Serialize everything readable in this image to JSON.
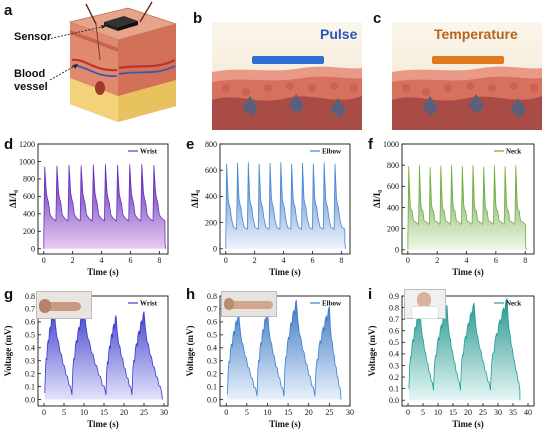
{
  "panels": {
    "a": {
      "letter": "a",
      "sensor_label": "Sensor",
      "blood_label": "Blood",
      "vessel_label": "vessel"
    },
    "b": {
      "letter": "b",
      "title": "Pulse"
    },
    "c": {
      "letter": "c",
      "title": "Temperature"
    }
  },
  "colors": {
    "pulse_title": "#2a57b8",
    "temp_title": "#b5651d",
    "sensor_pad": "#2e6fd6",
    "temp_pad": "#e07a1f"
  },
  "chart_data": [
    {
      "id": "d",
      "letter": "d",
      "type": "line",
      "legend": "Wrist",
      "xlabel": "Time (s)",
      "ylabel": "ΔI/I₀",
      "xlim": [
        -0.4,
        8.6
      ],
      "ylim": [
        -60,
        1200
      ],
      "xticks": [
        0,
        2,
        4,
        6,
        8
      ],
      "yticks": [
        0,
        200,
        400,
        600,
        800,
        1000,
        1200
      ],
      "color": "#6a2fc4",
      "fill_top": "#4b1fa6",
      "fill_bottom": "#e6c8f5",
      "x_start": 0,
      "period": 0.84,
      "cycles": 10,
      "baseline": 0,
      "peaks": [
        940,
        950,
        960,
        955,
        965,
        970,
        960,
        965,
        970,
        960
      ],
      "notch": 640,
      "notch2": 500,
      "trough": 320
    },
    {
      "id": "e",
      "letter": "e",
      "type": "line",
      "legend": "Elbow",
      "xlabel": "Time (s)",
      "ylabel": "ΔI/I₀",
      "xlim": [
        -0.4,
        8.6
      ],
      "ylim": [
        -40,
        800
      ],
      "xticks": [
        0,
        2,
        4,
        6,
        8
      ],
      "yticks": [
        0,
        200,
        400,
        600,
        800
      ],
      "color": "#4a86d8",
      "fill_top": "#3d74c7",
      "fill_bottom": "#eef4fc",
      "x_start": 0,
      "period": 0.75,
      "cycles": 11,
      "baseline": 0,
      "peaks": [
        650,
        655,
        660,
        650,
        655,
        660,
        650,
        655,
        650,
        660,
        650
      ],
      "notch": 380,
      "notch2": 300,
      "trough": 150
    },
    {
      "id": "f",
      "letter": "f",
      "type": "line",
      "legend": "Neck",
      "xlabel": "Time (s)",
      "ylabel": "ΔI/I₀",
      "xlim": [
        -0.4,
        8.6
      ],
      "ylim": [
        -40,
        1000
      ],
      "xticks": [
        0,
        2,
        4,
        6,
        8
      ],
      "yticks": [
        0,
        200,
        400,
        600,
        800,
        1000
      ],
      "color": "#6fae3f",
      "fill_top": "#5a9a33",
      "fill_bottom": "#eef7e6",
      "x_start": 0,
      "period": 0.73,
      "cycles": 11,
      "baseline": 0,
      "peaks": [
        790,
        800,
        780,
        795,
        800,
        790,
        800,
        785,
        800,
        790,
        800
      ],
      "notch": 420,
      "notch2": 350,
      "trough": 240
    },
    {
      "id": "g",
      "letter": "g",
      "type": "line",
      "legend": "Wrist",
      "xlabel": "Time (s)",
      "ylabel": "Voltage (mV)",
      "xlim": [
        -1.5,
        31
      ],
      "ylim": [
        -0.05,
        0.8
      ],
      "xticks": [
        0,
        5,
        10,
        15,
        20,
        25,
        30
      ],
      "yticks": [
        0.0,
        0.1,
        0.2,
        0.3,
        0.4,
        0.5,
        0.6,
        0.7,
        0.8
      ],
      "color": "#3a3ad0",
      "fill_top": "#3434c8",
      "fill_bottom": "#e2e2fa",
      "waves": [
        [
          0.2,
          2.5,
          7.0,
          0.7
        ],
        [
          7.0,
          10.0,
          15.5,
          0.7
        ],
        [
          15.5,
          18.0,
          22.0,
          0.63
        ],
        [
          22.0,
          25.0,
          29.5,
          0.66
        ]
      ],
      "base": 0.05,
      "end_x": 29.6
    },
    {
      "id": "h",
      "letter": "h",
      "type": "line",
      "legend": "Elbow",
      "xlabel": "Time (s)",
      "ylabel": "Voltage (mV)",
      "xlim": [
        -1.5,
        30
      ],
      "ylim": [
        -0.05,
        0.8
      ],
      "xticks": [
        0,
        5,
        10,
        15,
        20,
        25,
        30
      ],
      "yticks": [
        0.0,
        0.1,
        0.2,
        0.3,
        0.4,
        0.5,
        0.6,
        0.7,
        0.8
      ],
      "color": "#3b7fcc",
      "fill_top": "#2f6fbf",
      "fill_bottom": "#e8f1fb",
      "waves": [
        [
          0.3,
          3.0,
          7.5,
          0.66
        ],
        [
          7.5,
          10.0,
          14.0,
          0.68
        ],
        [
          14.0,
          17.0,
          21.5,
          0.75
        ],
        [
          21.5,
          25.0,
          27.8,
          0.7
        ]
      ],
      "base": 0.04,
      "end_x": 27.8
    },
    {
      "id": "i",
      "letter": "i",
      "type": "line",
      "legend": "Neck",
      "xlabel": "Time (s)",
      "ylabel": "Voltage (mV)",
      "xlim": [
        -2,
        42
      ],
      "ylim": [
        -0.05,
        0.9
      ],
      "xticks": [
        0,
        5,
        10,
        15,
        20,
        25,
        30,
        35,
        40
      ],
      "yticks": [
        0.0,
        0.1,
        0.2,
        0.3,
        0.4,
        0.5,
        0.6,
        0.7,
        0.8,
        0.9
      ],
      "color": "#1f9e97",
      "fill_top": "#1a8f88",
      "fill_bottom": "#e3f6f4",
      "waves": [
        [
          0.3,
          4.0,
          8.5,
          0.78
        ],
        [
          8.5,
          13.0,
          17.5,
          0.8
        ],
        [
          17.5,
          22.0,
          27.5,
          0.82
        ],
        [
          27.5,
          33.0,
          37.3,
          0.86
        ]
      ],
      "base": 0.1,
      "end_x": 37.3
    }
  ]
}
